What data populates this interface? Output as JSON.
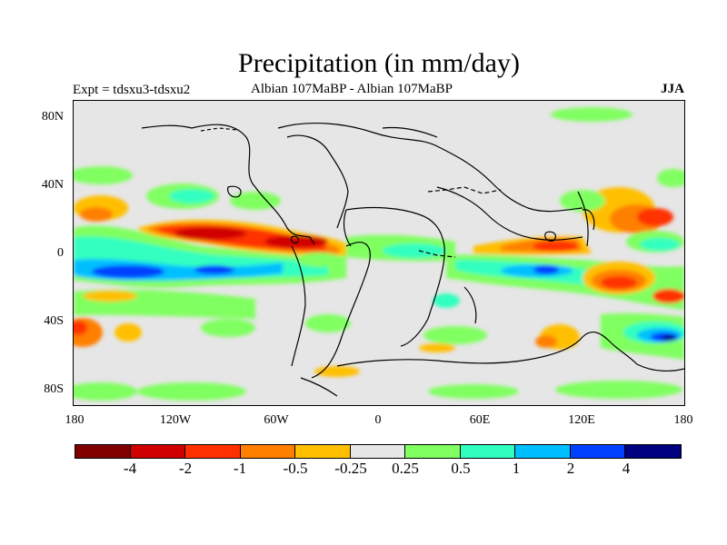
{
  "title": "Precipitation (in mm/day)",
  "subtitle": {
    "left": "Expt = tdsxu3-tdsxu2",
    "center": "Albian   107MaBP - Albian   107MaBP",
    "right": "JJA"
  },
  "axes": {
    "lat_ticks": [
      "80N",
      "40N",
      "0",
      "40S",
      "80S"
    ],
    "lon_ticks": [
      "180",
      "120W",
      "60W",
      "0",
      "60E",
      "120E",
      "180"
    ]
  },
  "colorbar": {
    "colors": [
      "#800000",
      "#d00000",
      "#ff3000",
      "#ff7f00",
      "#ffbf00",
      "#e6e6e6",
      "#80ff60",
      "#30ffc0",
      "#00bfff",
      "#0040ff",
      "#000080"
    ],
    "labels": [
      "-4",
      "-2",
      "-1",
      "-0.5",
      "-0.25",
      "0.25",
      "0.5",
      "1",
      "2",
      "4"
    ]
  },
  "colors": {
    "background": "#e6e6e6",
    "coastline": "#000000"
  }
}
